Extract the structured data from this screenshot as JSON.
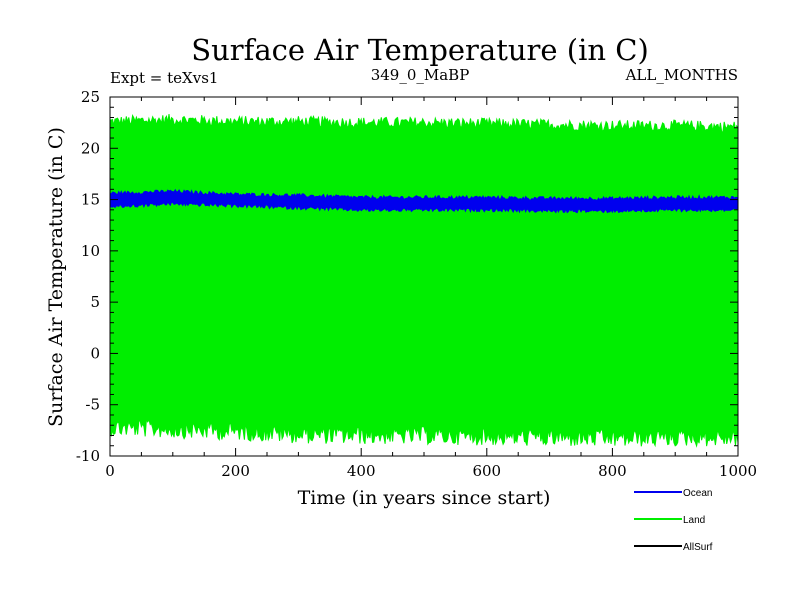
{
  "chart_data": {
    "type": "line",
    "title": "Surface Air Temperature (in C)",
    "subtitle_left": "Expt = teXvs1",
    "subtitle_center": "349_0_MaBP",
    "subtitle_right": "ALL_MONTHS",
    "xlabel": "Time (in years since start)",
    "ylabel": "Surface Air Temperature (in C)",
    "xlim": [
      0,
      1000
    ],
    "ylim": [
      -10,
      25
    ],
    "x_ticks": [
      0,
      200,
      400,
      600,
      800,
      1000
    ],
    "y_ticks": [
      -10,
      -5,
      0,
      5,
      10,
      15,
      20,
      25
    ],
    "grid": false,
    "legend_position": "bottom-right",
    "series": [
      {
        "name": "Land",
        "color": "#00ee00",
        "band_min": -7.6,
        "band_max": 22.5,
        "min_points": [
          [
            0,
            -7.2
          ],
          [
            100,
            -7.4
          ],
          [
            200,
            -7.6
          ],
          [
            300,
            -7.9
          ],
          [
            400,
            -8.0
          ],
          [
            500,
            -8.0
          ],
          [
            600,
            -8.1
          ],
          [
            700,
            -8.2
          ],
          [
            800,
            -8.3
          ],
          [
            900,
            -8.2
          ],
          [
            1000,
            -8.2
          ]
        ],
        "max_points": [
          [
            0,
            22.6
          ],
          [
            100,
            22.8
          ],
          [
            200,
            22.6
          ],
          [
            300,
            22.6
          ],
          [
            400,
            22.5
          ],
          [
            500,
            22.5
          ],
          [
            600,
            22.4
          ],
          [
            700,
            22.3
          ],
          [
            800,
            22.2
          ],
          [
            900,
            22.2
          ],
          [
            1000,
            22.1
          ]
        ]
      },
      {
        "name": "Ocean",
        "color": "#0000ee",
        "min_points": [
          [
            0,
            14.3
          ],
          [
            100,
            14.6
          ],
          [
            200,
            14.4
          ],
          [
            300,
            14.2
          ],
          [
            400,
            14.0
          ],
          [
            500,
            14.0
          ],
          [
            600,
            14.0
          ],
          [
            700,
            13.9
          ],
          [
            800,
            13.9
          ],
          [
            900,
            14.0
          ],
          [
            1000,
            14.0
          ]
        ],
        "max_points": [
          [
            0,
            15.6
          ],
          [
            100,
            15.8
          ],
          [
            200,
            15.5
          ],
          [
            300,
            15.4
          ],
          [
            400,
            15.2
          ],
          [
            500,
            15.2
          ],
          [
            600,
            15.2
          ],
          [
            700,
            15.1
          ],
          [
            800,
            15.1
          ],
          [
            900,
            15.2
          ],
          [
            1000,
            15.2
          ]
        ]
      },
      {
        "name": "AllSurf",
        "color": "#000000",
        "min_points": [],
        "max_points": []
      }
    ],
    "legend": [
      {
        "label": "Ocean",
        "color": "#0000ee"
      },
      {
        "label": "Land",
        "color": "#00ee00"
      },
      {
        "label": "AllSurf",
        "color": "#000000"
      }
    ]
  }
}
